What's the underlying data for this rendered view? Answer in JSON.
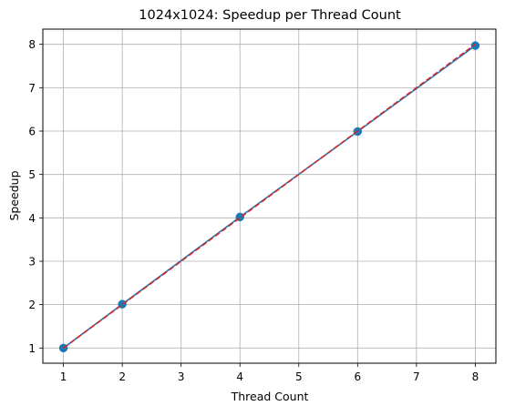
{
  "chart_data": {
    "type": "line",
    "title": "1024x1024: Speedup per Thread Count",
    "xlabel": "Thread Count",
    "ylabel": "Speedup",
    "xlim": [
      0.65,
      8.35
    ],
    "ylim": [
      0.65,
      8.35
    ],
    "x_ticks": [
      1,
      2,
      3,
      4,
      5,
      6,
      7,
      8
    ],
    "y_ticks": [
      1,
      2,
      3,
      4,
      5,
      6,
      7,
      8
    ],
    "grid": true,
    "legend": "none",
    "series": [
      {
        "values_x": [
          1,
          2,
          4,
          6,
          8
        ],
        "values_y": [
          1.0,
          2.01,
          4.02,
          5.99,
          7.97
        ],
        "color": "#1f77b4",
        "linestyle": "solid",
        "marker": "circle"
      },
      {
        "values_x": [
          1,
          8
        ],
        "values_y": [
          1,
          8
        ],
        "color": "#d62728",
        "linestyle": "dashed",
        "marker": "none"
      }
    ]
  }
}
